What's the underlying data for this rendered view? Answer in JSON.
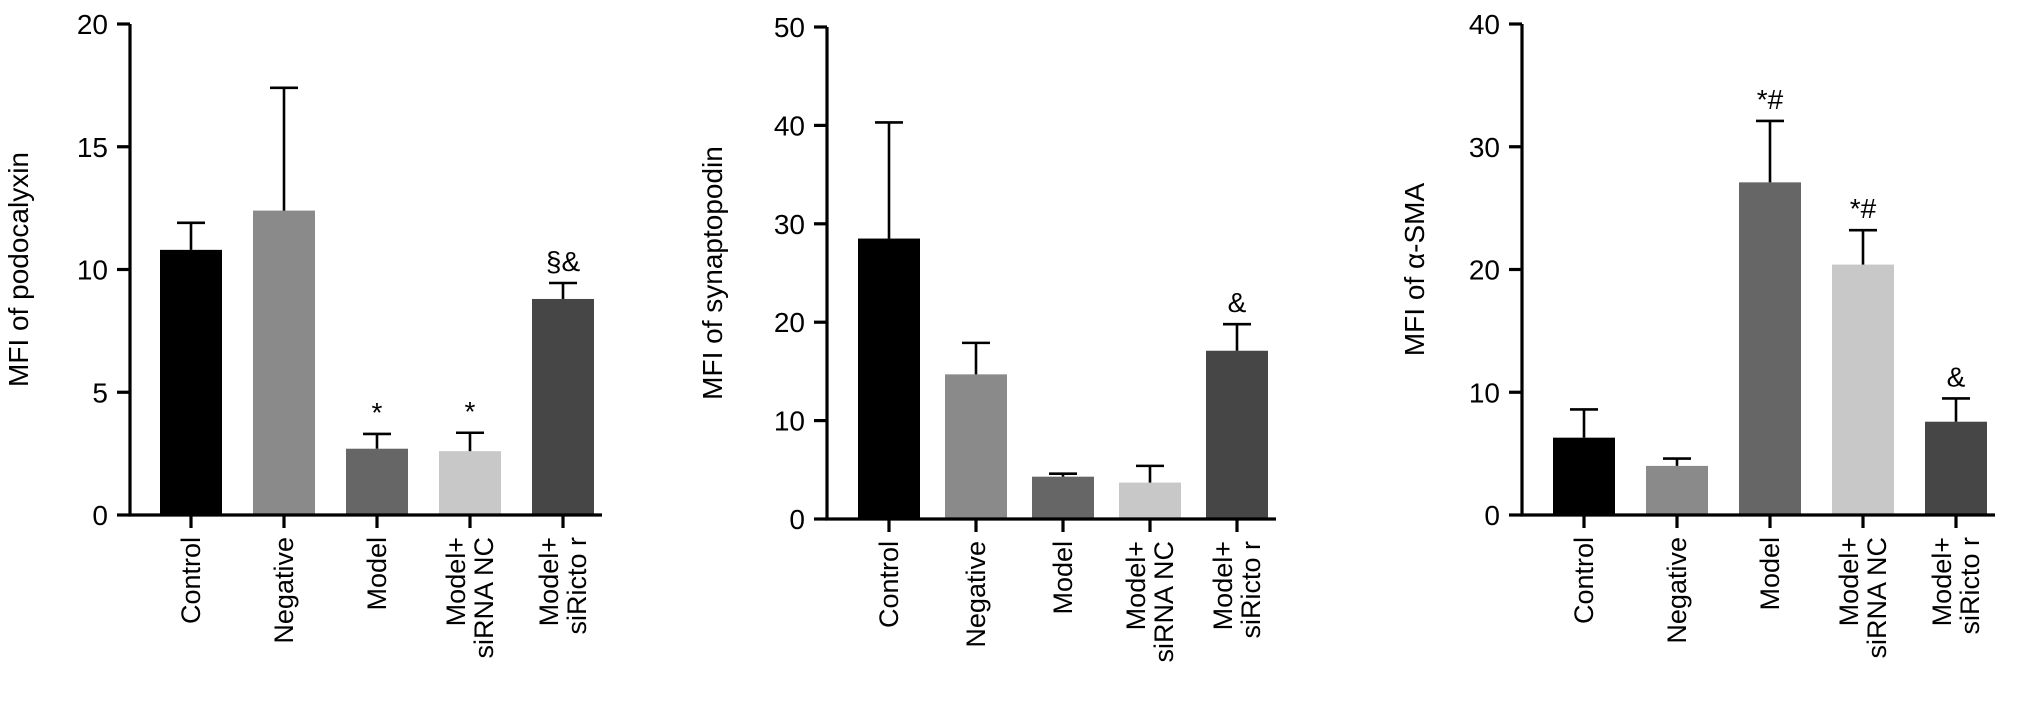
{
  "chart_data": [
    {
      "type": "bar",
      "categories": [
        "Control",
        "Negative",
        "Model",
        "Model+\nsiRNA NC",
        "Model+\nsiRicto r"
      ],
      "values": [
        10.8,
        12.4,
        2.7,
        2.6,
        8.8
      ],
      "errors": [
        1.1,
        5.0,
        0.6,
        0.75,
        0.65
      ],
      "annotations": [
        "",
        "",
        "*",
        "*",
        "§&"
      ],
      "colors": [
        "#000000",
        "#8a8a8a",
        "#666666",
        "#c8c8c8",
        "#464646"
      ],
      "ylabel": "MFI of podocalyxin",
      "ylim": [
        0,
        20
      ],
      "yticks": [
        0,
        5,
        10,
        15,
        20
      ]
    },
    {
      "type": "bar",
      "categories": [
        "Control",
        "Negative",
        "Model",
        "Model+\nsiRNA NC",
        "Model+\nsiRicto r"
      ],
      "values": [
        28.5,
        14.7,
        4.3,
        3.7,
        17.1
      ],
      "errors": [
        11.8,
        3.2,
        0.3,
        1.7,
        2.7
      ],
      "annotations": [
        "",
        "",
        "",
        "",
        "&"
      ],
      "colors": [
        "#000000",
        "#8a8a8a",
        "#666666",
        "#c8c8c8",
        "#464646"
      ],
      "ylabel": "MFI of synaptopodin",
      "ylim": [
        0,
        50
      ],
      "yticks": [
        0,
        10,
        20,
        30,
        40,
        50
      ]
    },
    {
      "type": "bar",
      "categories": [
        "Control",
        "Negative",
        "Model",
        "Model+\nsiRNA NC",
        "Model+\nsiRicto r"
      ],
      "values": [
        6.3,
        4.0,
        27.1,
        20.4,
        7.6
      ],
      "errors": [
        2.3,
        0.6,
        5.0,
        2.8,
        1.9
      ],
      "annotations": [
        "",
        "",
        "*#",
        "*#",
        "&"
      ],
      "colors": [
        "#000000",
        "#8a8a8a",
        "#666666",
        "#c8c8c8",
        "#464646"
      ],
      "ylabel": "MFI of α-SMA",
      "ylim": [
        0,
        40
      ],
      "yticks": [
        0,
        10,
        20,
        30,
        40
      ]
    }
  ]
}
